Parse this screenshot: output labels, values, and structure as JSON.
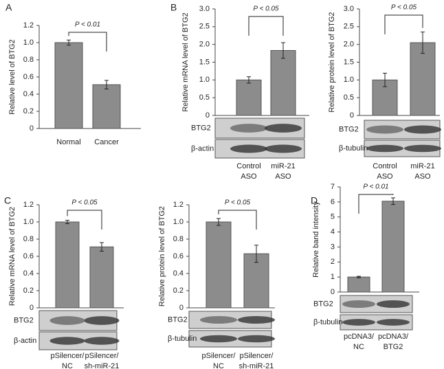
{
  "chart_data": [
    {
      "panel": "A",
      "type": "bar",
      "ylabel": "Relative level of BTG2",
      "categories": [
        [
          "Normal"
        ],
        [
          "Cancer"
        ]
      ],
      "values": [
        1.0,
        0.51
      ],
      "errors": [
        0.03,
        0.05
      ],
      "color": "#8c8c8c",
      "ylim": [
        0,
        1.2
      ],
      "yticks": [
        0,
        0.2,
        0.4,
        0.6,
        0.8,
        {
          "value": 1,
          "label": "1.0"
        },
        1.2
      ],
      "annotation": "P < 0.01"
    },
    {
      "panel": "B",
      "type": "bar",
      "ylabel": "Relative mRNA level of BTG2",
      "categories": [
        [
          "Control",
          "ASO"
        ],
        [
          "miR-21",
          "ASO"
        ]
      ],
      "values": [
        1.0,
        1.83
      ],
      "errors": [
        0.09,
        0.22
      ],
      "color": "#8c8c8c",
      "ylim": [
        0,
        3
      ],
      "yticks": [
        0,
        0.5,
        {
          "value": 1,
          "label": "1.0"
        },
        1.5,
        {
          "value": 2,
          "label": "2.0"
        },
        2.5,
        {
          "value": 3,
          "label": "3.0"
        }
      ],
      "annotation": "P < 0.05",
      "blot_labels": [
        "BTG2",
        "β-actin"
      ]
    },
    {
      "type": "bar",
      "ylabel": "Relative protein level of BTG2",
      "categories": [
        [
          "Control",
          "ASO"
        ],
        [
          "miR-21",
          "ASO"
        ]
      ],
      "values": [
        1.0,
        2.05
      ],
      "errors": [
        0.19,
        0.3
      ],
      "color": "#8c8c8c",
      "ylim": [
        0,
        3
      ],
      "yticks": [
        0,
        0.5,
        {
          "value": 1,
          "label": "1.0"
        },
        1.5,
        {
          "value": 2,
          "label": "2.0"
        },
        2.5,
        {
          "value": 3,
          "label": "3.0"
        }
      ],
      "annotation": "P < 0.05",
      "blot_labels": [
        "BTG2",
        "β-tubulin"
      ]
    },
    {
      "panel": "C",
      "type": "bar",
      "ylabel": "Relative mRNA level of BTG2",
      "categories": [
        [
          "pSilencer/",
          "NC"
        ],
        [
          "pSilencer/",
          "sh-miR-21"
        ]
      ],
      "values": [
        1.0,
        0.71
      ],
      "errors": [
        0.02,
        0.05
      ],
      "color": "#8c8c8c",
      "ylim": [
        0,
        1.2
      ],
      "yticks": [
        0,
        0.2,
        0.4,
        0.6,
        0.8,
        {
          "value": 1,
          "label": "1.0"
        },
        1.2
      ],
      "annotation": "P < 0.05",
      "blot_labels": [
        "BTG2",
        "β-actin"
      ]
    },
    {
      "type": "bar",
      "ylabel": "Relative protein level of BTG2",
      "categories": [
        [
          "pSilencer/",
          "NC"
        ],
        [
          "pSilencer/",
          "sh-miR-21"
        ]
      ],
      "values": [
        1.0,
        0.63
      ],
      "errors": [
        0.04,
        0.1
      ],
      "color": "#8c8c8c",
      "ylim": [
        0,
        1.2
      ],
      "yticks": [
        0,
        0.2,
        0.4,
        0.6,
        0.8,
        {
          "value": 1,
          "label": "1.0"
        },
        1.2
      ],
      "annotation": "P < 0.05",
      "blot_labels": [
        "BTG2",
        "β-tubulin"
      ]
    },
    {
      "panel": "D",
      "type": "bar",
      "ylabel": "Relative band intensity",
      "categories": [
        [
          "pcDNA3/",
          "NC"
        ],
        [
          "pcDNA3/",
          "BTG2"
        ]
      ],
      "values": [
        1.0,
        6.05
      ],
      "errors": [
        0.05,
        0.22
      ],
      "color": "#8c8c8c",
      "ylim": [
        0,
        7
      ],
      "yticks": [
        0,
        1,
        2,
        3,
        4,
        5,
        6,
        7
      ],
      "annotation": "P < 0.01",
      "blot_labels": [
        "BTG2",
        "β-tubulin"
      ]
    }
  ]
}
